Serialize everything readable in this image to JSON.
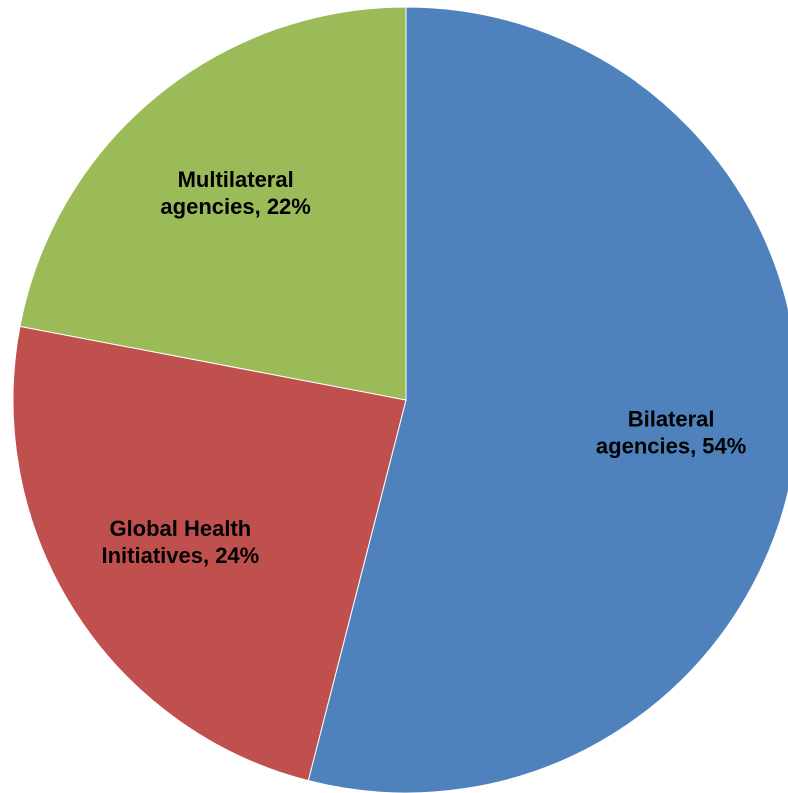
{
  "chart_data": {
    "type": "pie",
    "values": [
      54,
      24,
      22
    ],
    "value_labels": [
      "Bilateral agencies, 54%",
      "Global Health Initiatives, 24%",
      "Multilateral agencies, 22%"
    ],
    "colors": [
      "#4f81bd",
      "#c0504d",
      "#9bbb59"
    ]
  }
}
